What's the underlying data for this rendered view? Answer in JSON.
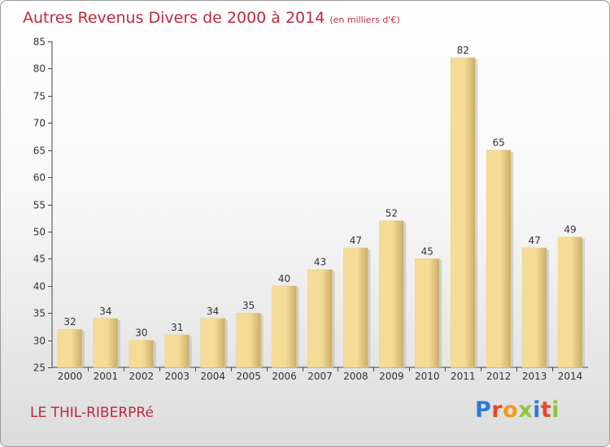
{
  "title": "Autres Revenus Divers de 2000 à 2014",
  "unit": "(en milliers d'€)",
  "place": "LE THIL-RIBERPRé",
  "logo": {
    "text": "Proxiti",
    "colors": [
      "#2e7bd4",
      "#e24a2a",
      "#f29a1c",
      "#8bc53f",
      "#2e7bd4",
      "#e24a2a",
      "#8bc53f"
    ]
  },
  "colors": {
    "title": "#c0283c",
    "bar_light": "#f5dc96",
    "bar_dark": "#c9ad68"
  },
  "chart_data": {
    "type": "bar",
    "categories": [
      "2000",
      "2001",
      "2002",
      "2003",
      "2004",
      "2005",
      "2006",
      "2007",
      "2008",
      "2009",
      "2010",
      "2011",
      "2012",
      "2013",
      "2014"
    ],
    "values": [
      32,
      34,
      30,
      31,
      34,
      35,
      40,
      43,
      47,
      52,
      45,
      82,
      65,
      47,
      49
    ],
    "ylim": [
      25,
      85
    ],
    "yticks": [
      25,
      30,
      35,
      40,
      45,
      50,
      55,
      60,
      65,
      70,
      75,
      80,
      85
    ],
    "grid": false,
    "legend": "none"
  }
}
